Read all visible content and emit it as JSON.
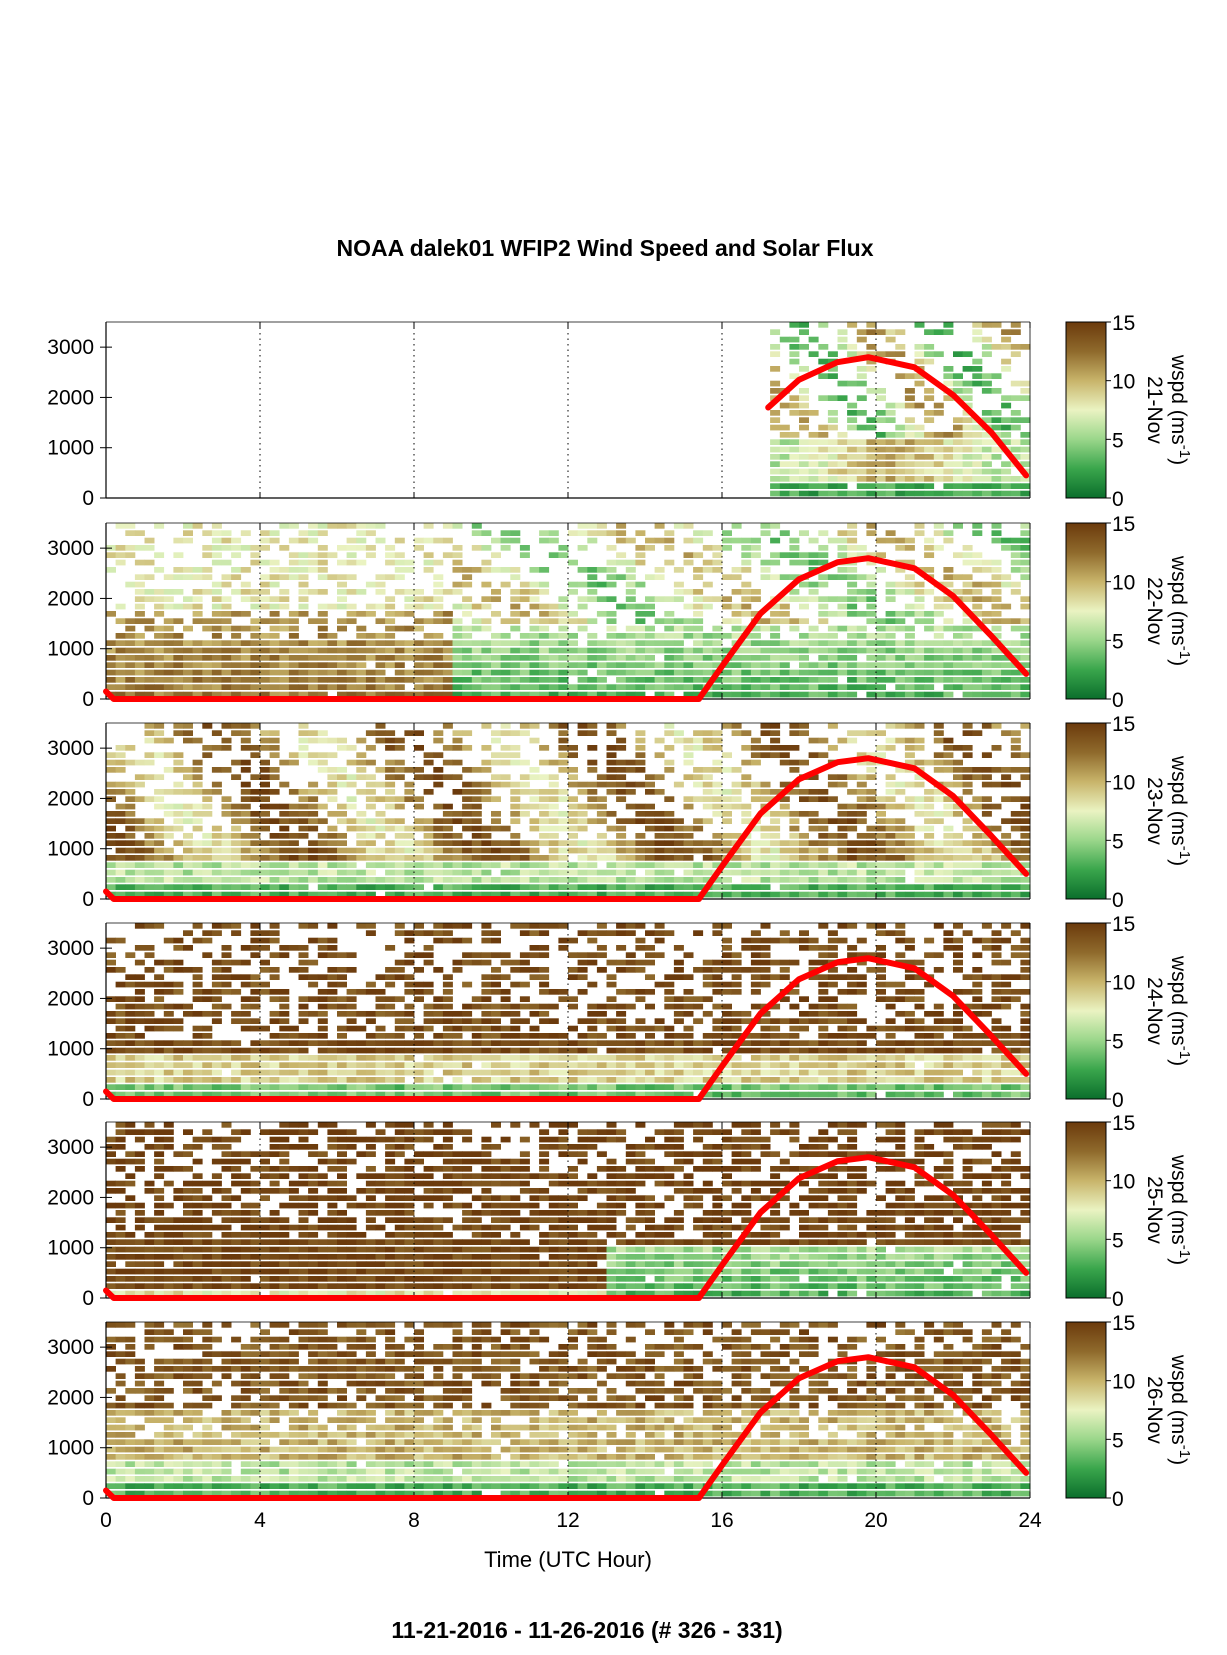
{
  "title": "NOAA dalek01 WFIP2 Wind Speed and Solar Flux",
  "footer": "11-21-2016 - 11-26-2016   (# 326 - 331)",
  "colors": {
    "solar_flux_line": "#ff0000",
    "colormap": [
      "#0b6e2c",
      "#3aa64c",
      "#9ad68a",
      "#eaf3c2",
      "#c8b46a",
      "#8f6a2c",
      "#6b3a0c"
    ],
    "grid": "#000000"
  },
  "chart_data": {
    "type": "heatmap",
    "xlabel": "Time (UTC Hour)",
    "xlim": [
      0,
      24
    ],
    "x_ticks": [
      0,
      4,
      8,
      12,
      16,
      20,
      24
    ],
    "ylim": [
      0,
      3500
    ],
    "y_ticks": [
      0,
      1000,
      2000,
      3000
    ],
    "grid": "vertical dotted lines at x ticks",
    "colorbar": {
      "label": "wspd (ms",
      "label_sup": "-1",
      "label_close": ")",
      "range": [
        0,
        15
      ],
      "ticks": [
        0,
        5,
        10,
        15
      ]
    },
    "panels": [
      {
        "date": "21-Nov",
        "data_start_hour": 17.2,
        "solar_flux": [
          [
            17.2,
            1800
          ],
          [
            18,
            2350
          ],
          [
            19,
            2700
          ],
          [
            19.8,
            2800
          ],
          [
            21,
            2600
          ],
          [
            22,
            2050
          ],
          [
            23,
            1300
          ],
          [
            23.9,
            450
          ]
        ]
      },
      {
        "date": "22-Nov",
        "data_start_hour": 0,
        "solar_flux": [
          [
            0,
            150
          ],
          [
            0.2,
            0
          ],
          [
            15.4,
            0
          ],
          [
            16,
            650
          ],
          [
            17,
            1700
          ],
          [
            18,
            2380
          ],
          [
            19,
            2720
          ],
          [
            19.8,
            2800
          ],
          [
            21,
            2600
          ],
          [
            22,
            2050
          ],
          [
            23,
            1250
          ],
          [
            23.9,
            500
          ]
        ]
      },
      {
        "date": "23-Nov",
        "data_start_hour": 0,
        "solar_flux": [
          [
            0,
            150
          ],
          [
            0.2,
            0
          ],
          [
            15.4,
            0
          ],
          [
            16,
            650
          ],
          [
            17,
            1700
          ],
          [
            18,
            2380
          ],
          [
            19,
            2720
          ],
          [
            19.8,
            2800
          ],
          [
            21,
            2600
          ],
          [
            22,
            2050
          ],
          [
            23,
            1250
          ],
          [
            23.9,
            500
          ]
        ]
      },
      {
        "date": "24-Nov",
        "data_start_hour": 0,
        "solar_flux": [
          [
            0,
            150
          ],
          [
            0.2,
            0
          ],
          [
            15.4,
            0
          ],
          [
            16,
            650
          ],
          [
            17,
            1700
          ],
          [
            18,
            2380
          ],
          [
            19,
            2720
          ],
          [
            19.8,
            2800
          ],
          [
            21,
            2600
          ],
          [
            22,
            2050
          ],
          [
            23,
            1250
          ],
          [
            23.9,
            500
          ]
        ]
      },
      {
        "date": "25-Nov",
        "data_start_hour": 0,
        "solar_flux": [
          [
            0,
            150
          ],
          [
            0.2,
            0
          ],
          [
            15.4,
            0
          ],
          [
            16,
            650
          ],
          [
            17,
            1700
          ],
          [
            18,
            2380
          ],
          [
            19,
            2720
          ],
          [
            19.8,
            2800
          ],
          [
            21,
            2600
          ],
          [
            22,
            2050
          ],
          [
            23,
            1250
          ],
          [
            23.9,
            500
          ]
        ]
      },
      {
        "date": "26-Nov",
        "data_start_hour": 0,
        "solar_flux": [
          [
            0,
            150
          ],
          [
            0.2,
            0
          ],
          [
            15.4,
            0
          ],
          [
            16,
            650
          ],
          [
            17,
            1700
          ],
          [
            18,
            2380
          ],
          [
            19,
            2720
          ],
          [
            19.8,
            2800
          ],
          [
            21,
            2600
          ],
          [
            22,
            2050
          ],
          [
            23,
            1250
          ],
          [
            23.9,
            500
          ]
        ]
      }
    ]
  }
}
